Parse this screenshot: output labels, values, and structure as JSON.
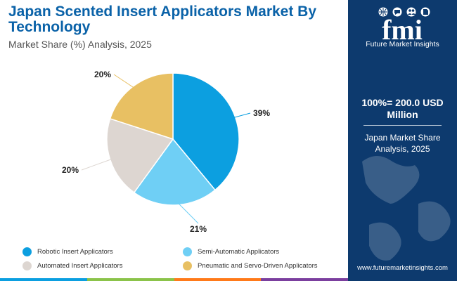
{
  "header": {
    "title": "Japan Scented Insert Applicators Market By Technology",
    "subtitle": "Market Share (%) Analysis, 2025"
  },
  "chart_data": {
    "type": "pie",
    "title": "Japan Scented Insert Applicators Market By Technology",
    "subtitle": "Market Share (%) Analysis, 2025",
    "categories": [
      "Robotic Insert Applicators",
      "Semi-Automatic Applicators",
      "Automated Insert Applicators",
      "Pneumatic and Servo-Driven Applicators"
    ],
    "values": [
      39,
      21,
      20,
      20
    ],
    "labels": [
      "39%",
      "21%",
      "20%",
      "20%"
    ],
    "colors": [
      "#0c9fe0",
      "#6fcff5",
      "#ddd6d1",
      "#e8c063"
    ],
    "legend_position": "bottom"
  },
  "sidebar": {
    "logo_text": "fmi",
    "logo_tagline": "Future Market Insights",
    "total_value": "100%= 200.0 USD Million",
    "total_caption": "Japan Market Share Analysis, 2025",
    "website": "www.futuremarketinsights.com"
  },
  "colors": {
    "title": "#0a62a8",
    "sidebar_bg": "#0d3a6e",
    "bottom_bar": [
      "#0c9fe0",
      "#8bc34a",
      "#ff7a1a",
      "#7b3f9e"
    ]
  },
  "icons": [
    "globe-icon",
    "chat-icon",
    "people-icon",
    "document-icon"
  ]
}
